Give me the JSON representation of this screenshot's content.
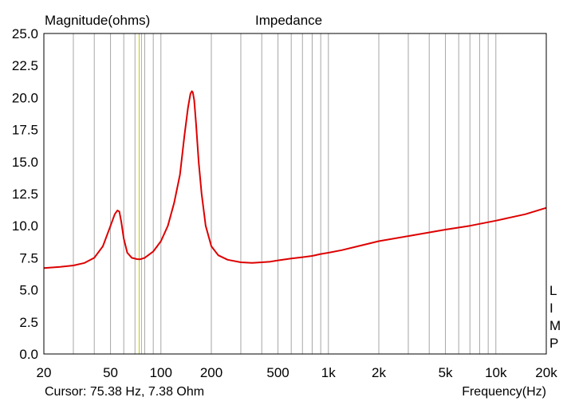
{
  "chart_data": {
    "type": "line",
    "title": "Impedance",
    "ylabel": "Magnitude(ohms)",
    "xlabel": "Frequency(Hz)",
    "x_scale": "log",
    "xlim": [
      20,
      20000
    ],
    "ylim": [
      0,
      25
    ],
    "grid": true,
    "x_tick_values": [
      20,
      50,
      100,
      200,
      500,
      1000,
      2000,
      5000,
      10000,
      20000
    ],
    "x_tick_labels": [
      "20",
      "50",
      "100",
      "200",
      "500",
      "1k",
      "2k",
      "5k",
      "10k",
      "20k"
    ],
    "y_tick_values": [
      0,
      2.5,
      5,
      7.5,
      10,
      12.5,
      15,
      17.5,
      20,
      22.5,
      25
    ],
    "y_tick_labels": [
      "0.0",
      "2.5",
      "5.0",
      "7.5",
      "10.0",
      "12.5",
      "15.0",
      "17.5",
      "20.0",
      "22.5",
      "25.0"
    ],
    "side_label": [
      "L",
      "I",
      "M",
      "P"
    ],
    "cursor_text": "Cursor: 75.38 Hz, 7.38 Ohm",
    "cursor_x": 75.38,
    "series": [
      {
        "color": "#dd0000",
        "x": [
          20,
          25,
          30,
          35,
          40,
          45,
          50,
          53,
          55,
          56.5,
          58,
          60,
          63,
          67,
          72,
          75,
          80,
          90,
          100,
          110,
          120,
          130,
          138,
          145,
          150,
          153,
          155,
          158,
          162,
          168,
          175,
          185,
          200,
          220,
          250,
          300,
          350,
          400,
          450,
          500,
          600,
          700,
          800,
          900,
          1000,
          1200,
          1500,
          2000,
          3000,
          5000,
          7000,
          10000,
          15000,
          20000
        ],
        "y": [
          6.7,
          6.8,
          6.9,
          7.1,
          7.5,
          8.4,
          10.0,
          10.9,
          11.2,
          11.1,
          10.3,
          9.0,
          7.9,
          7.5,
          7.4,
          7.38,
          7.5,
          8.0,
          8.8,
          10.0,
          11.8,
          14.0,
          17.0,
          19.2,
          20.3,
          20.5,
          20.4,
          19.8,
          18.0,
          15.0,
          12.5,
          10.0,
          8.4,
          7.7,
          7.35,
          7.15,
          7.1,
          7.15,
          7.2,
          7.3,
          7.45,
          7.55,
          7.65,
          7.8,
          7.9,
          8.1,
          8.4,
          8.8,
          9.2,
          9.7,
          10.0,
          10.4,
          10.9,
          11.4
        ]
      }
    ]
  }
}
